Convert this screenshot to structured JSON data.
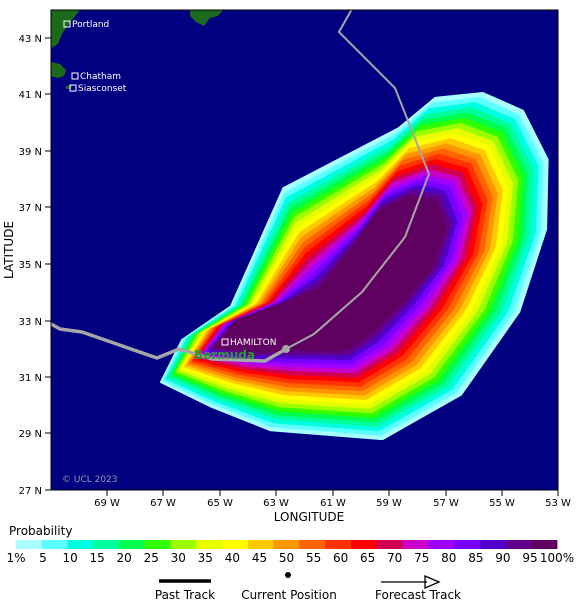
{
  "map": {
    "latitude_label": "LATITUDE",
    "longitude_label": "LONGITUDE",
    "lat_ticks": [
      "43 N",
      "41 N",
      "39 N",
      "37 N",
      "35 N",
      "33 N",
      "31 N",
      "29 N",
      "27 N"
    ],
    "lon_ticks": [
      "69 W",
      "67 W",
      "65 W",
      "63 W",
      "61 W",
      "59 W",
      "57 W",
      "55 W",
      "53 W"
    ],
    "places": [
      {
        "name": "Portland"
      },
      {
        "name": "Chatham"
      },
      {
        "name": "Siasconset"
      },
      {
        "name": "HAMILTON"
      }
    ],
    "island_label": "Bermuda",
    "copyright": "© UCL 2023",
    "colors": {
      "ocean": "#000080",
      "land": "#1c6b1c",
      "past_track": "#a6a6a6",
      "forecast_track": "#a6a6a6",
      "island_label": "#2e9a2e"
    }
  },
  "probability": {
    "title": "Probability",
    "labels": [
      "1%",
      "5",
      "10",
      "15",
      "20",
      "25",
      "30",
      "35",
      "40",
      "45",
      "50",
      "55",
      "60",
      "65",
      "70",
      "75",
      "80",
      "85",
      "90",
      "95",
      "100%"
    ],
    "colors": [
      "#a8ffff",
      "#5cffff",
      "#00ffe0",
      "#00ff9c",
      "#00ff4c",
      "#30ff00",
      "#9cff00",
      "#e6ff00",
      "#ffff00",
      "#ffc800",
      "#ff9600",
      "#ff6400",
      "#ff3200",
      "#ff0000",
      "#d20050",
      "#c800c8",
      "#a000ff",
      "#7800ff",
      "#5000c8",
      "#60008c",
      "#600060"
    ]
  },
  "legend": {
    "past_track": "Past Track",
    "current_position": "Current Position",
    "forecast_track": "Forecast Track"
  }
}
